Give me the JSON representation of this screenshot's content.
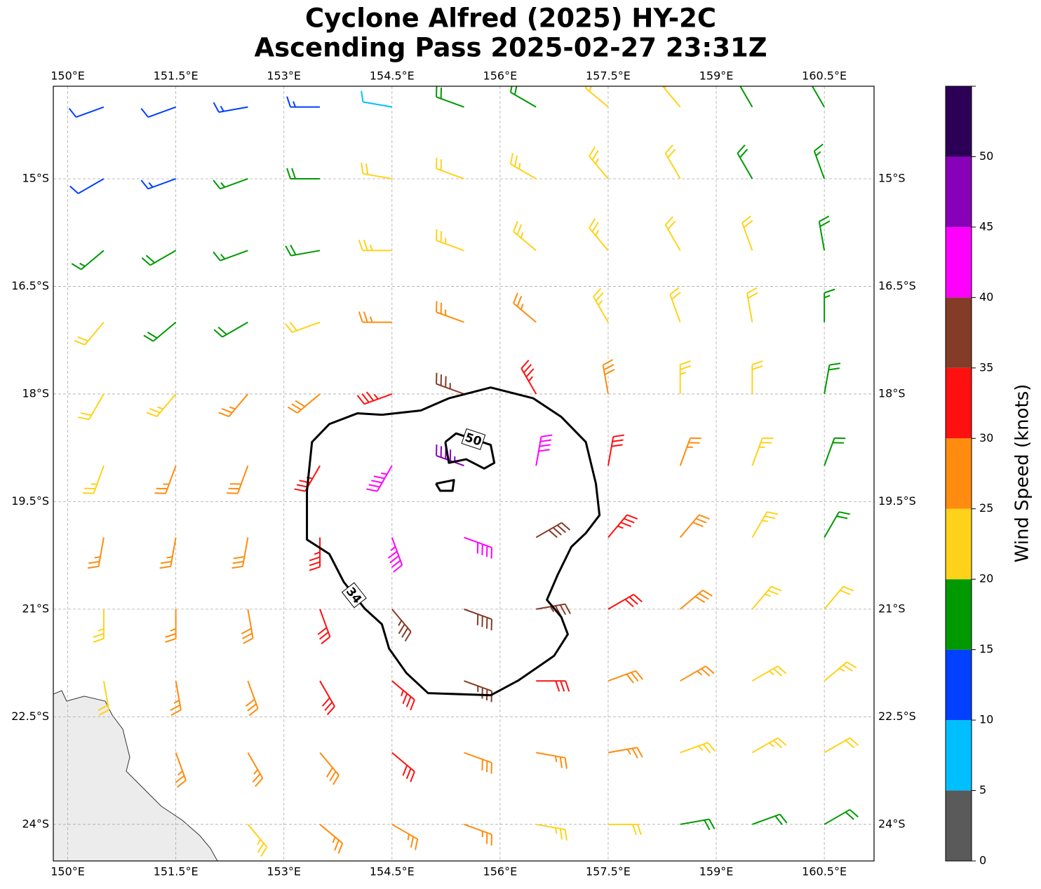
{
  "chart_data": {
    "type": "barbs",
    "title": "Cyclone Alfred (2025) HY-2C",
    "subtitle": "Ascending Pass 2025-02-27 23:31Z",
    "xlim": [
      149.8,
      161.19
    ],
    "ylim": [
      -24.51,
      -13.71
    ],
    "xticks": [
      {
        "value": 150,
        "label": "150°E"
      },
      {
        "value": 151.5,
        "label": "151.5°E"
      },
      {
        "value": 153,
        "label": "153°E"
      },
      {
        "value": 154.5,
        "label": "154.5°E"
      },
      {
        "value": 156,
        "label": "156°E"
      },
      {
        "value": 157.5,
        "label": "157.5°E"
      },
      {
        "value": 159,
        "label": "159°E"
      },
      {
        "value": 160.5,
        "label": "160.5°E"
      }
    ],
    "yticks": [
      {
        "value": -15,
        "label": "15°S"
      },
      {
        "value": -16.5,
        "label": "16.5°S"
      },
      {
        "value": -18,
        "label": "18°S"
      },
      {
        "value": -19.5,
        "label": "19.5°S"
      },
      {
        "value": -21,
        "label": "21°S"
      },
      {
        "value": -22.5,
        "label": "22.5°S"
      },
      {
        "value": -24,
        "label": "24°S"
      }
    ],
    "grid": true,
    "wind": {
      "lons": [
        150.5,
        151.5,
        152.5,
        153.5,
        154.5,
        155.5,
        156.5,
        157.5,
        158.5,
        159.5,
        160.5
      ],
      "lats": [
        -14,
        -15,
        -16,
        -17,
        -18,
        -19,
        -20,
        -21,
        -22,
        -23,
        -24
      ],
      "speed": [
        [
          12,
          12,
          13,
          14,
          9,
          18,
          19,
          21,
          21,
          18,
          17
        ],
        [
          12,
          13,
          17,
          18,
          20,
          22,
          23,
          23,
          22,
          19,
          17
        ],
        [
          17,
          18,
          17,
          19,
          23,
          24,
          24,
          23,
          22,
          21,
          18
        ],
        [
          21,
          18,
          19,
          22,
          26,
          27,
          26,
          24,
          22,
          21,
          17
        ],
        [
          22,
          24,
          26,
          28,
          33,
          37,
          34,
          28,
          24,
          22,
          19
        ],
        [
          24,
          26,
          28,
          33,
          44,
          47,
          40,
          32,
          26,
          23,
          19
        ],
        [
          26,
          27,
          29,
          34,
          43,
          42,
          38,
          33,
          28,
          24,
          18
        ],
        [
          23,
          27,
          28,
          32,
          37,
          38,
          37,
          32,
          29,
          24,
          22
        ],
        [
          20,
          27,
          28,
          30,
          33,
          35,
          32,
          29,
          27,
          24,
          23
        ],
        [
          null,
          26,
          27,
          28,
          30,
          29,
          27,
          25,
          24,
          23,
          22
        ],
        [
          null,
          null,
          24,
          26,
          27,
          26,
          24,
          22,
          19,
          18,
          19
        ]
      ],
      "direction": [
        [
          250,
          250,
          260,
          270,
          280,
          290,
          300,
          310,
          320,
          330,
          330
        ],
        [
          240,
          250,
          250,
          270,
          280,
          290,
          300,
          320,
          330,
          330,
          340
        ],
        [
          230,
          240,
          250,
          260,
          270,
          290,
          310,
          320,
          330,
          340,
          350
        ],
        [
          220,
          230,
          240,
          250,
          270,
          290,
          310,
          330,
          340,
          350,
          0
        ],
        [
          210,
          220,
          220,
          230,
          250,
          290,
          330,
          350,
          0,
          0,
          10
        ],
        [
          200,
          200,
          200,
          210,
          210,
          290,
          10,
          10,
          20,
          20,
          20
        ],
        [
          190,
          190,
          190,
          180,
          160,
          110,
          60,
          40,
          40,
          30,
          30
        ],
        [
          180,
          180,
          170,
          160,
          140,
          110,
          80,
          60,
          50,
          40,
          40
        ],
        [
          170,
          170,
          160,
          150,
          130,
          110,
          90,
          70,
          60,
          60,
          50
        ],
        [
          null,
          160,
          150,
          140,
          130,
          110,
          100,
          80,
          70,
          60,
          60
        ],
        [
          null,
          null,
          140,
          130,
          120,
          110,
          100,
          90,
          80,
          70,
          60
        ]
      ]
    },
    "contours": [
      {
        "level": 34,
        "lon": [
          154.36,
          154.9,
          155.29,
          155.87,
          156.46,
          156.85,
          157.19,
          157.33,
          157.38,
          157.19,
          156.99,
          156.8,
          156.65,
          156.85,
          156.94,
          156.75,
          156.26,
          155.87,
          155.0,
          154.7,
          154.46,
          154.36,
          154.12,
          153.83,
          153.63,
          153.32,
          153.32,
          153.39,
          153.63,
          154.02,
          154.36
        ],
        "lat": [
          -18.29,
          -18.23,
          -18.06,
          -17.91,
          -18.06,
          -18.32,
          -18.67,
          -19.25,
          -19.69,
          -19.94,
          -20.13,
          -20.52,
          -20.87,
          -21.11,
          -21.35,
          -21.65,
          -21.99,
          -22.2,
          -22.17,
          -21.89,
          -21.55,
          -21.21,
          -20.99,
          -20.62,
          -20.23,
          -20.03,
          -19.35,
          -18.67,
          -18.42,
          -18.27,
          -18.29
        ]
      },
      {
        "level": 50,
        "lon": [
          155.24,
          155.39,
          155.87,
          155.92,
          155.78,
          155.53,
          155.29,
          155.24,
          null,
          155.11,
          155.36,
          155.34,
          155.17,
          155.11
        ],
        "lat": [
          -18.67,
          -18.55,
          -18.71,
          -18.96,
          -19.04,
          -18.91,
          -18.96,
          -18.67,
          null,
          -19.25,
          -19.2,
          -19.35,
          -19.35,
          -19.25
        ]
      }
    ],
    "colorbar": {
      "label": "Wind Speed (knots)",
      "lim": [
        0,
        55
      ],
      "ticks": [
        0,
        5,
        10,
        15,
        20,
        25,
        30,
        35,
        40,
        45,
        50
      ],
      "colors": [
        "#5a5a5a",
        "#00bfff",
        "#0040ff",
        "#009900",
        "#ffd21a",
        "#ff8c0f",
        "#ff1010",
        "#843c28",
        "#ff00ff",
        "#8800b8",
        "#2d0058"
      ]
    }
  }
}
